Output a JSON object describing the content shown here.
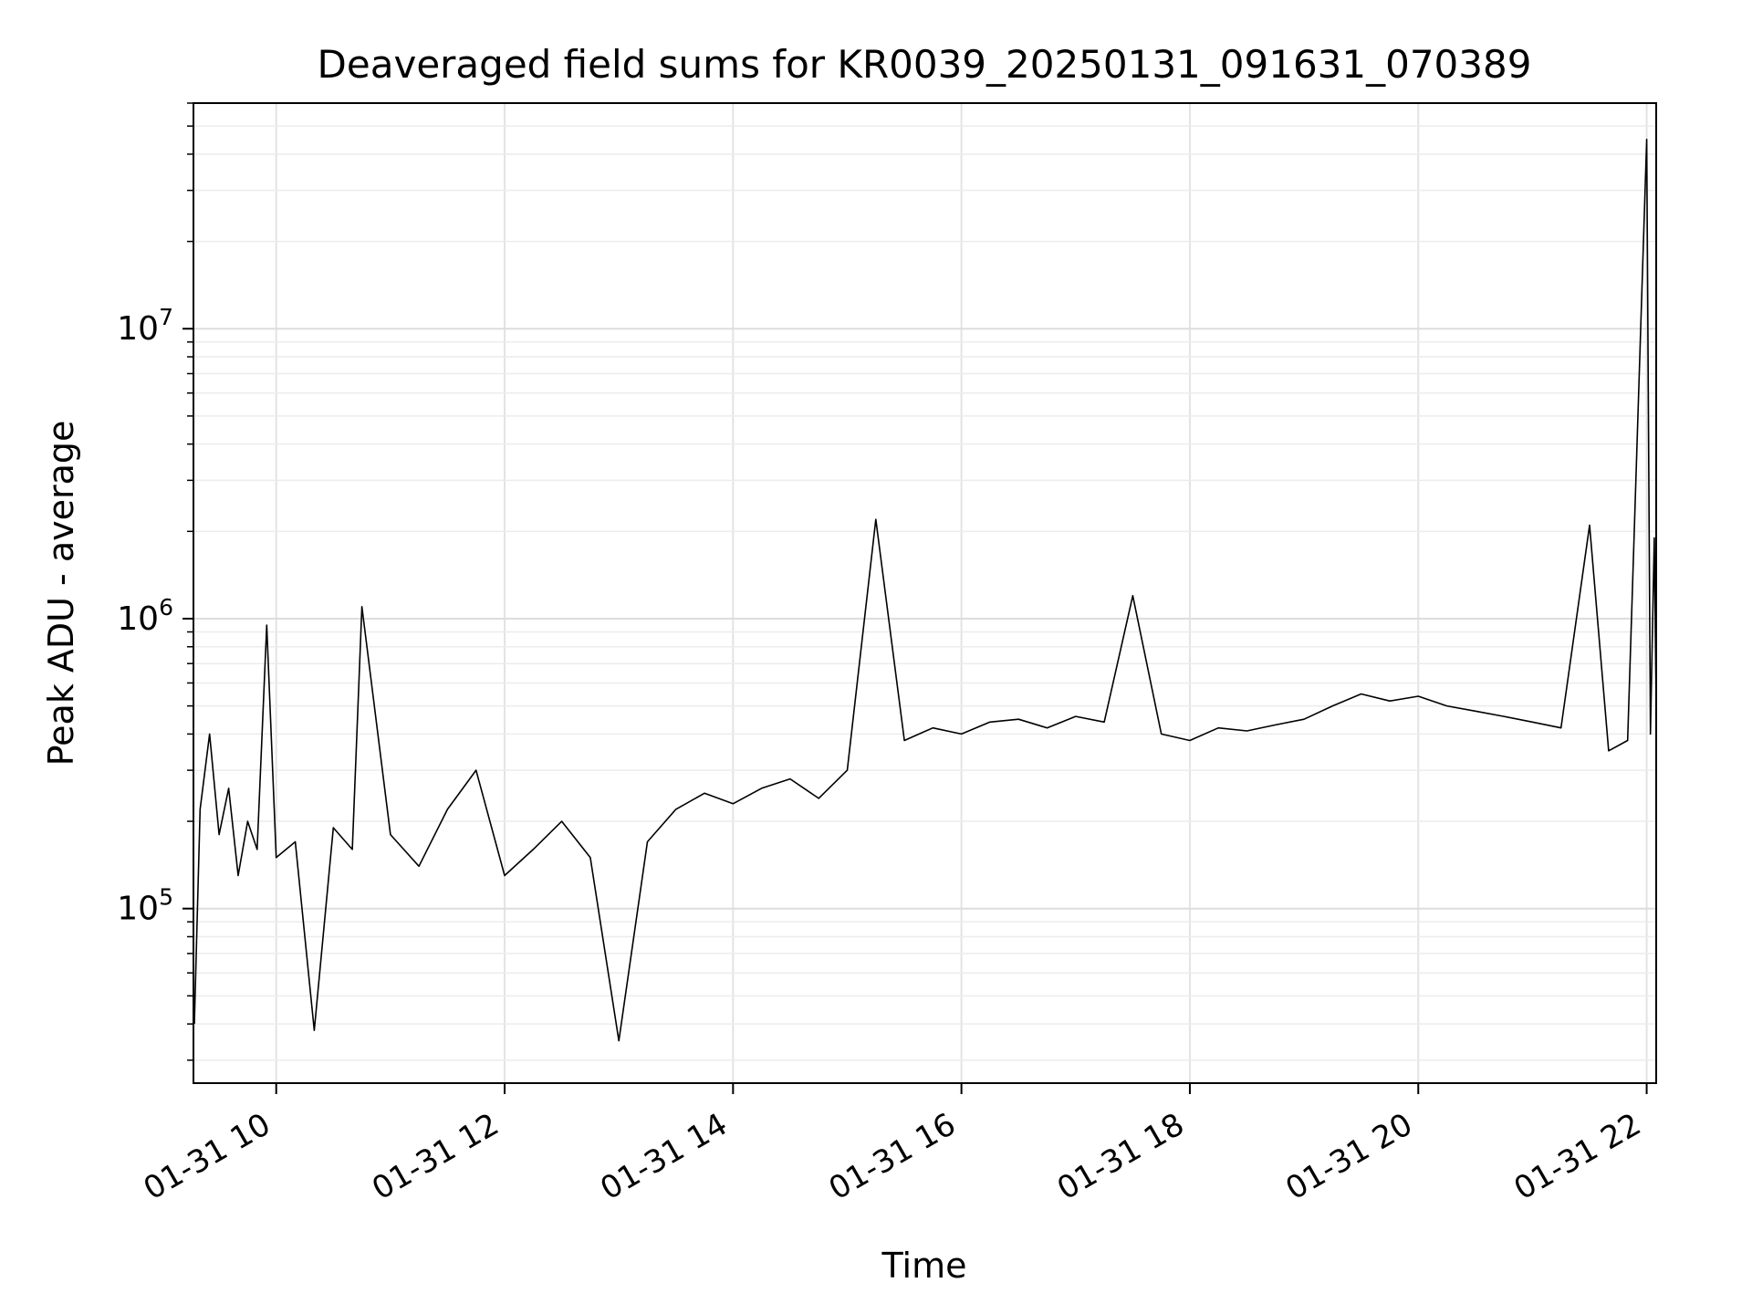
{
  "chart_data": {
    "type": "line",
    "title": "Deaveraged field sums for KR0039_20250131_091631_070389",
    "xlabel": "Time",
    "ylabel": "Peak ADU - average",
    "x_scale": "time",
    "y_scale": "log",
    "xlim": [
      "2025-01-31T09:16:31",
      "2025-01-31T22:05:00"
    ],
    "ylim": [
      25000,
      60000000
    ],
    "x_ticks": [
      {
        "t": "2025-01-31T10:00",
        "label": "01-31 10"
      },
      {
        "t": "2025-01-31T12:00",
        "label": "01-31 12"
      },
      {
        "t": "2025-01-31T14:00",
        "label": "01-31 14"
      },
      {
        "t": "2025-01-31T16:00",
        "label": "01-31 16"
      },
      {
        "t": "2025-01-31T18:00",
        "label": "01-31 18"
      },
      {
        "t": "2025-01-31T20:00",
        "label": "01-31 20"
      },
      {
        "t": "2025-01-31T22:00",
        "label": "01-31 22"
      }
    ],
    "y_ticks": [
      {
        "value": 100000,
        "base": "10",
        "exp": "5"
      },
      {
        "value": 1000000,
        "base": "10",
        "exp": "6"
      },
      {
        "value": 10000000,
        "base": "10",
        "exp": "7"
      }
    ],
    "grid": true,
    "legend": "none",
    "line_color": "#000000",
    "series": [
      {
        "values": [
          [
            "2025-01-31T09:17",
            40000
          ],
          [
            "2025-01-31T09:20",
            220000
          ],
          [
            "2025-01-31T09:25",
            400000
          ],
          [
            "2025-01-31T09:30",
            180000
          ],
          [
            "2025-01-31T09:35",
            260000
          ],
          [
            "2025-01-31T09:40",
            130000
          ],
          [
            "2025-01-31T09:45",
            200000
          ],
          [
            "2025-01-31T09:50",
            160000
          ],
          [
            "2025-01-31T09:55",
            950000
          ],
          [
            "2025-01-31T10:00",
            150000
          ],
          [
            "2025-01-31T10:10",
            170000
          ],
          [
            "2025-01-31T10:20",
            38000
          ],
          [
            "2025-01-31T10:30",
            190000
          ],
          [
            "2025-01-31T10:40",
            160000
          ],
          [
            "2025-01-31T10:45",
            1100000
          ],
          [
            "2025-01-31T11:00",
            180000
          ],
          [
            "2025-01-31T11:15",
            140000
          ],
          [
            "2025-01-31T11:30",
            220000
          ],
          [
            "2025-01-31T11:45",
            300000
          ],
          [
            "2025-01-31T12:00",
            130000
          ],
          [
            "2025-01-31T12:15",
            160000
          ],
          [
            "2025-01-31T12:30",
            200000
          ],
          [
            "2025-01-31T12:45",
            150000
          ],
          [
            "2025-01-31T13:00",
            35000
          ],
          [
            "2025-01-31T13:15",
            170000
          ],
          [
            "2025-01-31T13:30",
            220000
          ],
          [
            "2025-01-31T13:45",
            250000
          ],
          [
            "2025-01-31T14:00",
            230000
          ],
          [
            "2025-01-31T14:15",
            260000
          ],
          [
            "2025-01-31T14:30",
            280000
          ],
          [
            "2025-01-31T14:45",
            240000
          ],
          [
            "2025-01-31T15:00",
            300000
          ],
          [
            "2025-01-31T15:15",
            2200000
          ],
          [
            "2025-01-31T15:30",
            380000
          ],
          [
            "2025-01-31T15:45",
            420000
          ],
          [
            "2025-01-31T16:00",
            400000
          ],
          [
            "2025-01-31T16:15",
            440000
          ],
          [
            "2025-01-31T16:30",
            450000
          ],
          [
            "2025-01-31T16:45",
            420000
          ],
          [
            "2025-01-31T17:00",
            460000
          ],
          [
            "2025-01-31T17:15",
            440000
          ],
          [
            "2025-01-31T17:30",
            1200000
          ],
          [
            "2025-01-31T17:45",
            400000
          ],
          [
            "2025-01-31T18:00",
            380000
          ],
          [
            "2025-01-31T18:15",
            420000
          ],
          [
            "2025-01-31T18:30",
            410000
          ],
          [
            "2025-01-31T18:45",
            430000
          ],
          [
            "2025-01-31T19:00",
            450000
          ],
          [
            "2025-01-31T19:15",
            500000
          ],
          [
            "2025-01-31T19:30",
            550000
          ],
          [
            "2025-01-31T19:45",
            520000
          ],
          [
            "2025-01-31T20:00",
            540000
          ],
          [
            "2025-01-31T20:15",
            500000
          ],
          [
            "2025-01-31T20:30",
            480000
          ],
          [
            "2025-01-31T20:45",
            460000
          ],
          [
            "2025-01-31T21:00",
            440000
          ],
          [
            "2025-01-31T21:15",
            420000
          ],
          [
            "2025-01-31T21:30",
            2100000
          ],
          [
            "2025-01-31T21:40",
            350000
          ],
          [
            "2025-01-31T21:50",
            380000
          ],
          [
            "2025-01-31T22:00",
            45000000
          ],
          [
            "2025-01-31T22:02",
            400000
          ],
          [
            "2025-01-31T22:04",
            1900000
          ],
          [
            "2025-01-31T22:05",
            500000
          ]
        ]
      }
    ]
  }
}
